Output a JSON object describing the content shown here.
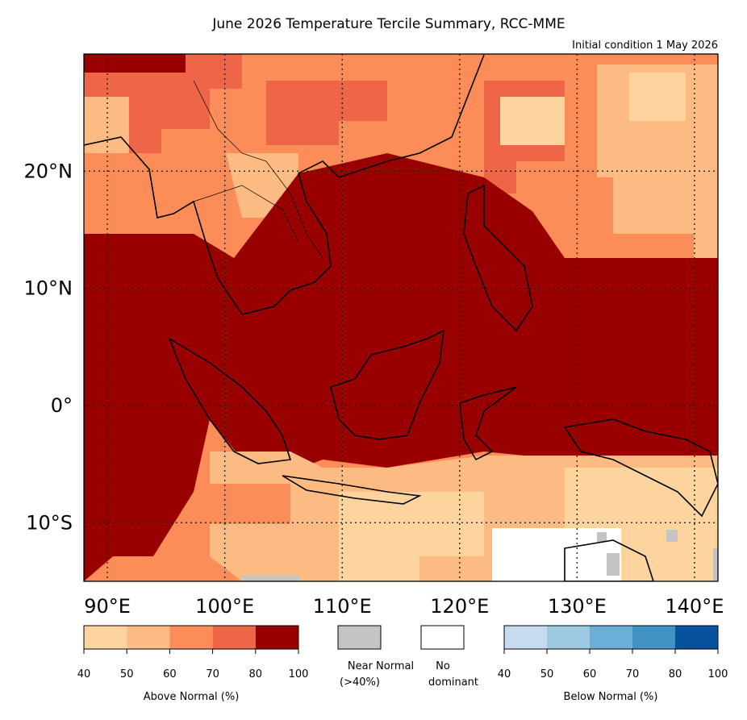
{
  "chart_data": {
    "type": "map",
    "title": "June 2026 Temperature Tercile Summary, RCC-MME",
    "subtitle": "Initial condition 1 May 2026",
    "xlim": [
      88,
      142
    ],
    "ylim": [
      -15,
      30
    ],
    "xticks": [
      {
        "value": 90,
        "label": "90°E"
      },
      {
        "value": 100,
        "label": "100°E"
      },
      {
        "value": 110,
        "label": "110°E"
      },
      {
        "value": 120,
        "label": "120°E"
      },
      {
        "value": 130,
        "label": "130°E"
      },
      {
        "value": 140,
        "label": "140°E"
      }
    ],
    "yticks": [
      {
        "value": 20,
        "label": "20°N"
      },
      {
        "value": 10,
        "label": "10°N"
      },
      {
        "value": 0,
        "label": "0°"
      },
      {
        "value": -10,
        "label": "10°S"
      }
    ],
    "grid": true,
    "above_normal": {
      "label": "Above Normal (%)",
      "ticks": [
        40,
        50,
        60,
        70,
        80,
        100
      ],
      "colors": [
        "#fdd49e",
        "#fdbb84",
        "#fc8d59",
        "#ef6548",
        "#990000"
      ]
    },
    "near_normal": {
      "label": [
        "Near Normal",
        "(>40%)"
      ],
      "color": "#c4c4c4"
    },
    "no_dominant": {
      "label": [
        "No",
        "dominant"
      ],
      "color": "#ffffff"
    },
    "below_normal": {
      "label": "Below Normal (%)",
      "ticks": [
        40,
        50,
        60,
        70,
        80,
        100
      ],
      "colors": [
        "#c6dbef",
        "#9ecae1",
        "#6baed6",
        "#4292c6",
        "#08519c"
      ]
    }
  }
}
